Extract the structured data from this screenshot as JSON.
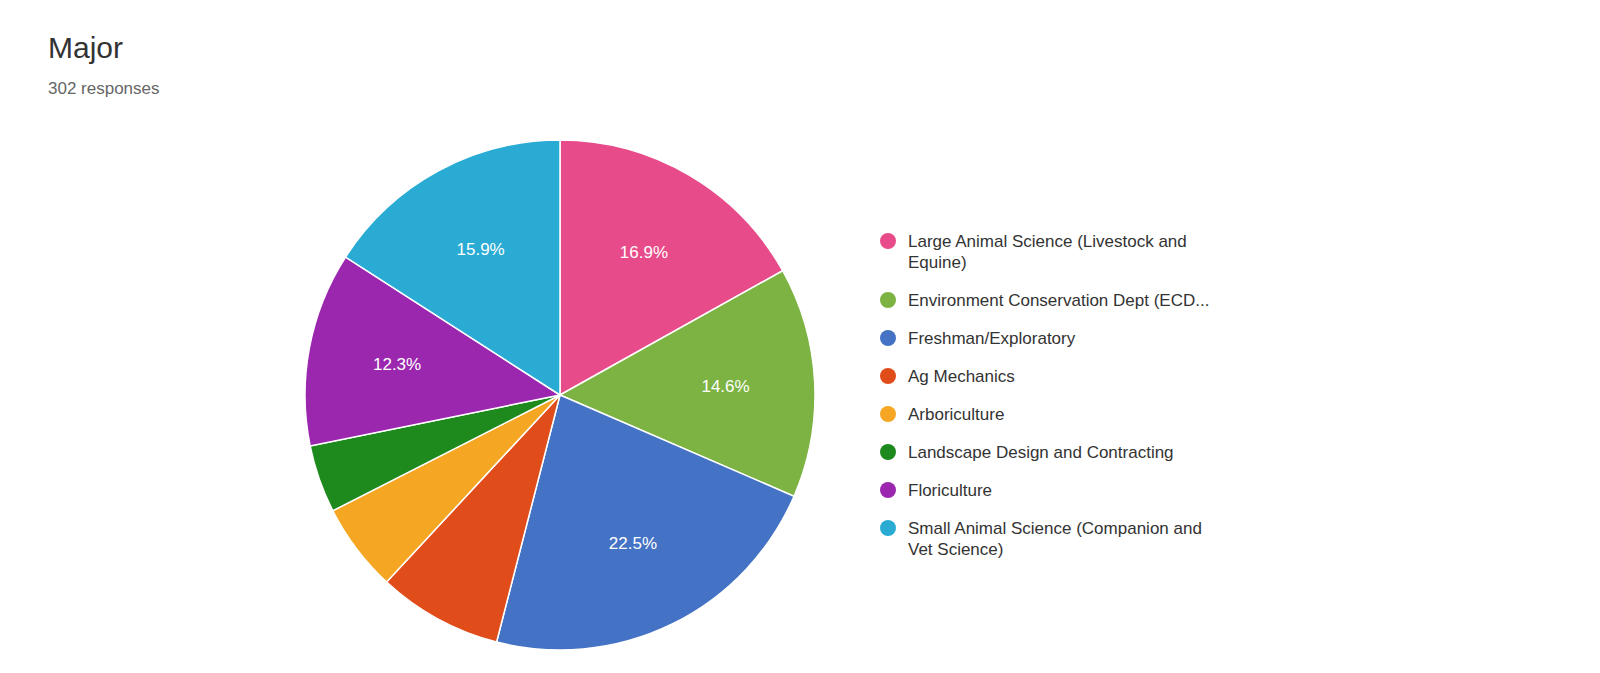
{
  "chart_data": {
    "type": "pie",
    "title": "Major",
    "subtitle": "302 responses",
    "categories": [
      "Large Animal Science (Livestock and\nEquine)",
      "Environment Conservation Dept (ECD...",
      "Freshman/Exploratory",
      "Ag Mechanics",
      "Arboriculture",
      "Landscape Design and Contracting",
      "Floriculture",
      "Small Animal Science (Companion and\nVet Science)"
    ],
    "values": [
      16.9,
      14.6,
      22.5,
      7.9,
      5.6,
      4.3,
      12.3,
      15.9
    ],
    "value_labels": [
      "16.9%",
      "14.6%",
      "22.5%",
      null,
      null,
      null,
      "12.3%",
      "15.9%"
    ],
    "colors": [
      "#E84B8A",
      "#7CB342",
      "#4472C4",
      "#E04C1A",
      "#F5A623",
      "#1E8A1E",
      "#9B27AF",
      "#29ABD4"
    ],
    "data_labels": true
  }
}
